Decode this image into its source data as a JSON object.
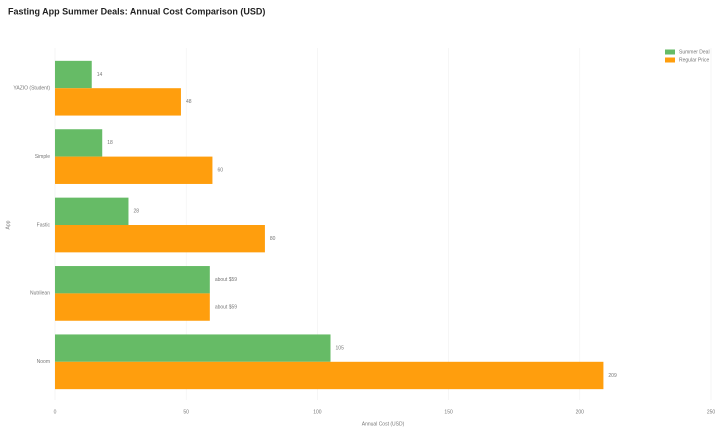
{
  "chart_data": {
    "type": "hbar",
    "title": "Fasting App Summer Deals: Annual Cost Comparison (USD)",
    "x_label": "Annual Cost (USD)",
    "y_label": "App",
    "categories": [
      "YAZIO (Student)",
      "Simple",
      "Fastic",
      "Nutrilean",
      "Noom"
    ],
    "series": [
      {
        "name": "Summer Deal",
        "color": "#66bb66",
        "values": [
          14,
          18,
          28,
          59,
          105
        ],
        "value_labels": [
          "14",
          "18",
          "28",
          "about $59",
          "105"
        ]
      },
      {
        "name": "Regular Price",
        "color": "#ff9e0d",
        "values": [
          48,
          60,
          80,
          59,
          209
        ],
        "value_labels": [
          "48",
          "60",
          "80",
          "about $59",
          "209"
        ]
      }
    ],
    "xlim": [
      0,
      250
    ],
    "xticks": [
      0,
      50,
      100,
      150,
      200,
      250
    ],
    "grid": true,
    "legend": "top-right"
  }
}
